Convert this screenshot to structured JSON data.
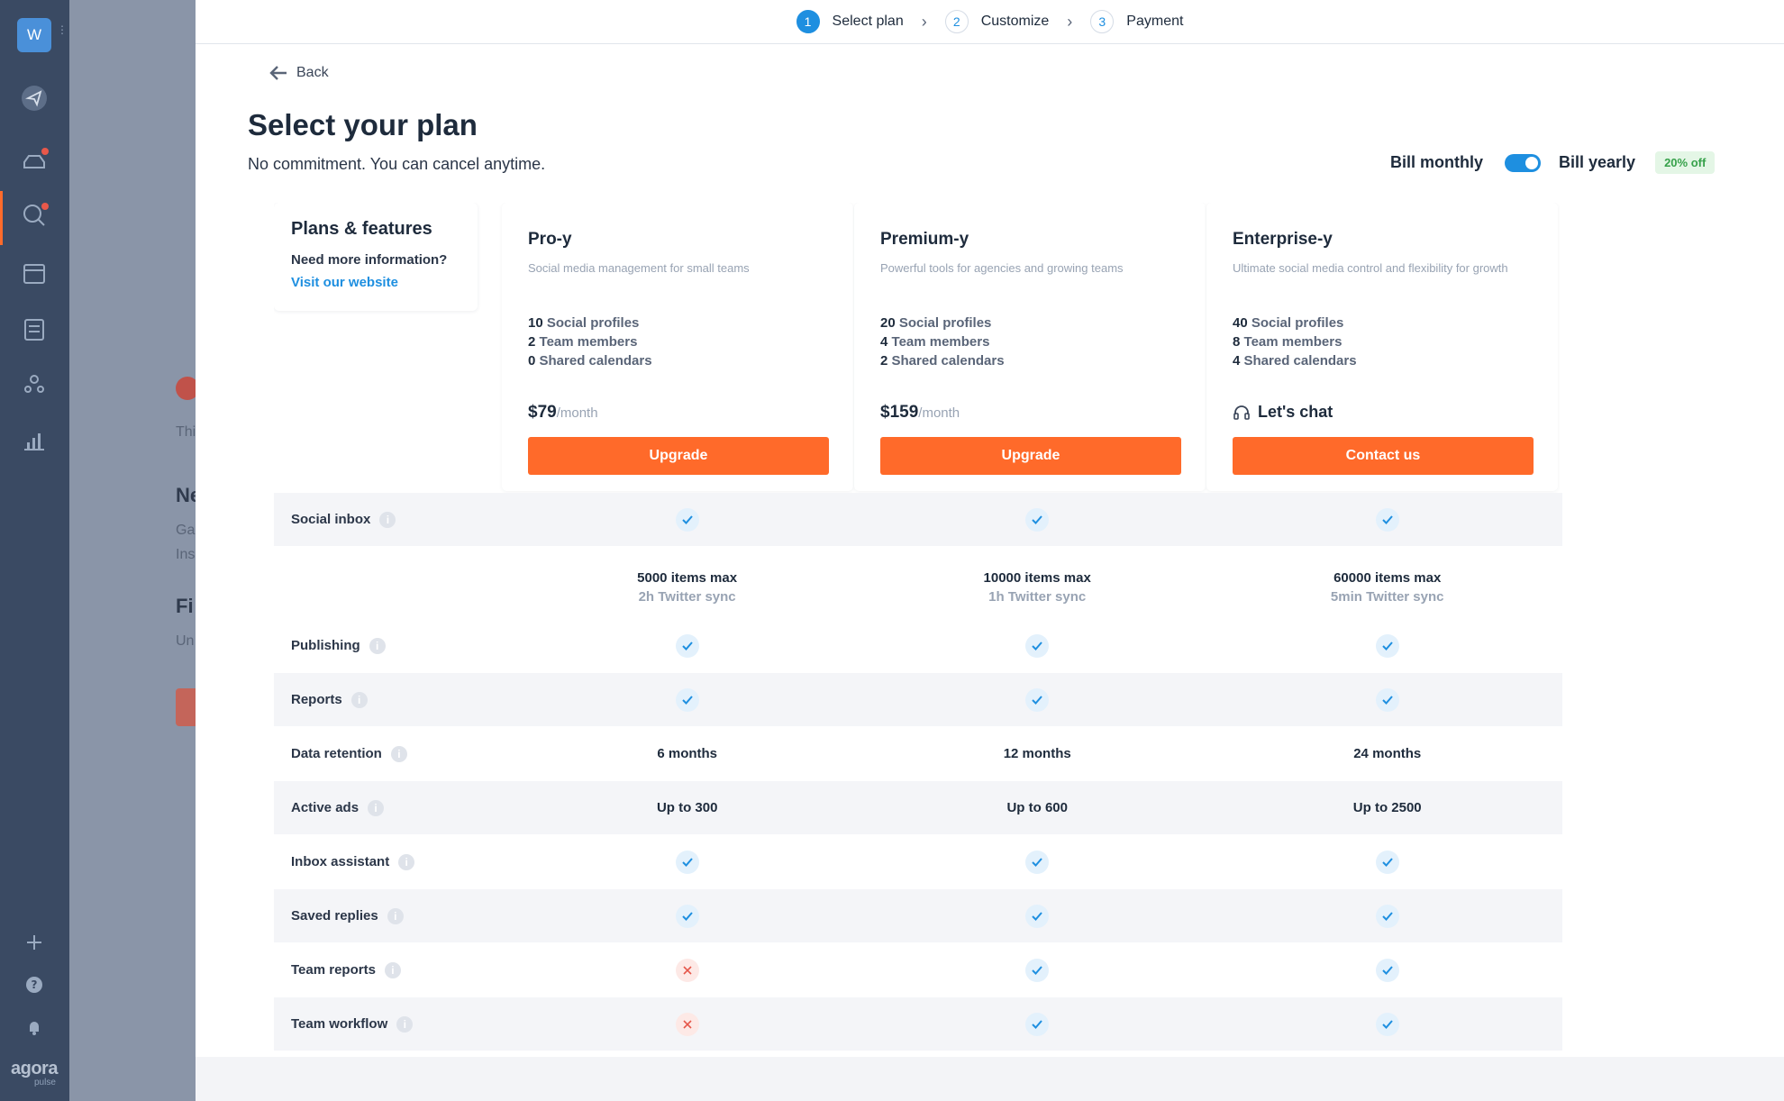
{
  "rail": {
    "workspace_initial": "W",
    "brand": "agora",
    "brand_sub": "pulse"
  },
  "background": {
    "t1": "Thi",
    "t2": "Ne",
    "t3": "Ga",
    "t4": "Ins",
    "t5": "Fi",
    "t6": "Un"
  },
  "stepper": {
    "steps": [
      {
        "num": "1",
        "label": "Select plan"
      },
      {
        "num": "2",
        "label": "Customize"
      },
      {
        "num": "3",
        "label": "Payment"
      }
    ]
  },
  "back_label": "Back",
  "title": "Select your plan",
  "subtitle": "No commitment. You can cancel anytime.",
  "billing": {
    "monthly": "Bill monthly",
    "yearly": "Bill yearly",
    "discount": "20% off"
  },
  "features_card": {
    "heading": "Plans & features",
    "question": "Need more information?",
    "link": "Visit our website"
  },
  "plans": [
    {
      "name": "Pro-y",
      "desc": "Social media management for small teams",
      "profiles": "10",
      "profiles_label": "Social profiles",
      "members": "2",
      "members_label": "Team members",
      "calendars": "0",
      "calendars_label": "Shared calendars",
      "price": "$79",
      "period": "/month",
      "button": "Upgrade"
    },
    {
      "name": "Premium-y",
      "desc": "Powerful tools for agencies and growing teams",
      "profiles": "20",
      "profiles_label": "Social profiles",
      "members": "4",
      "members_label": "Team members",
      "calendars": "2",
      "calendars_label": "Shared calendars",
      "price": "$159",
      "period": "/month",
      "button": "Upgrade"
    },
    {
      "name": "Enterprise-y",
      "desc": "Ultimate social media control and flexibility for growth",
      "profiles": "40",
      "profiles_label": "Social profiles",
      "members": "8",
      "members_label": "Team members",
      "calendars": "4",
      "calendars_label": "Shared calendars",
      "chat": "Let's chat",
      "button": "Contact us"
    }
  ],
  "inbox_details": [
    {
      "max": "5000 items max",
      "sync": "2h Twitter sync"
    },
    {
      "max": "10000 items max",
      "sync": "1h Twitter sync"
    },
    {
      "max": "60000 items max",
      "sync": "5min Twitter sync"
    }
  ],
  "features": [
    {
      "label": "Social inbox",
      "values": [
        "check",
        "check",
        "check"
      ]
    },
    {
      "label": "Publishing",
      "values": [
        "check",
        "check",
        "check"
      ]
    },
    {
      "label": "Reports",
      "values": [
        "check",
        "check",
        "check"
      ]
    },
    {
      "label": "Data retention",
      "values": [
        "6 months",
        "12 months",
        "24 months"
      ]
    },
    {
      "label": "Active ads",
      "values": [
        "Up to 300",
        "Up to 600",
        "Up to 2500"
      ]
    },
    {
      "label": "Inbox assistant",
      "values": [
        "check",
        "check",
        "check"
      ]
    },
    {
      "label": "Saved replies",
      "values": [
        "check",
        "check",
        "check"
      ]
    },
    {
      "label": "Team reports",
      "values": [
        "cross",
        "check",
        "check"
      ]
    },
    {
      "label": "Team workflow",
      "values": [
        "cross",
        "check",
        "check"
      ]
    }
  ],
  "colors": {
    "accent": "#ff6a2a",
    "primary": "#1e8fe0",
    "rail": "#3a4a63"
  }
}
